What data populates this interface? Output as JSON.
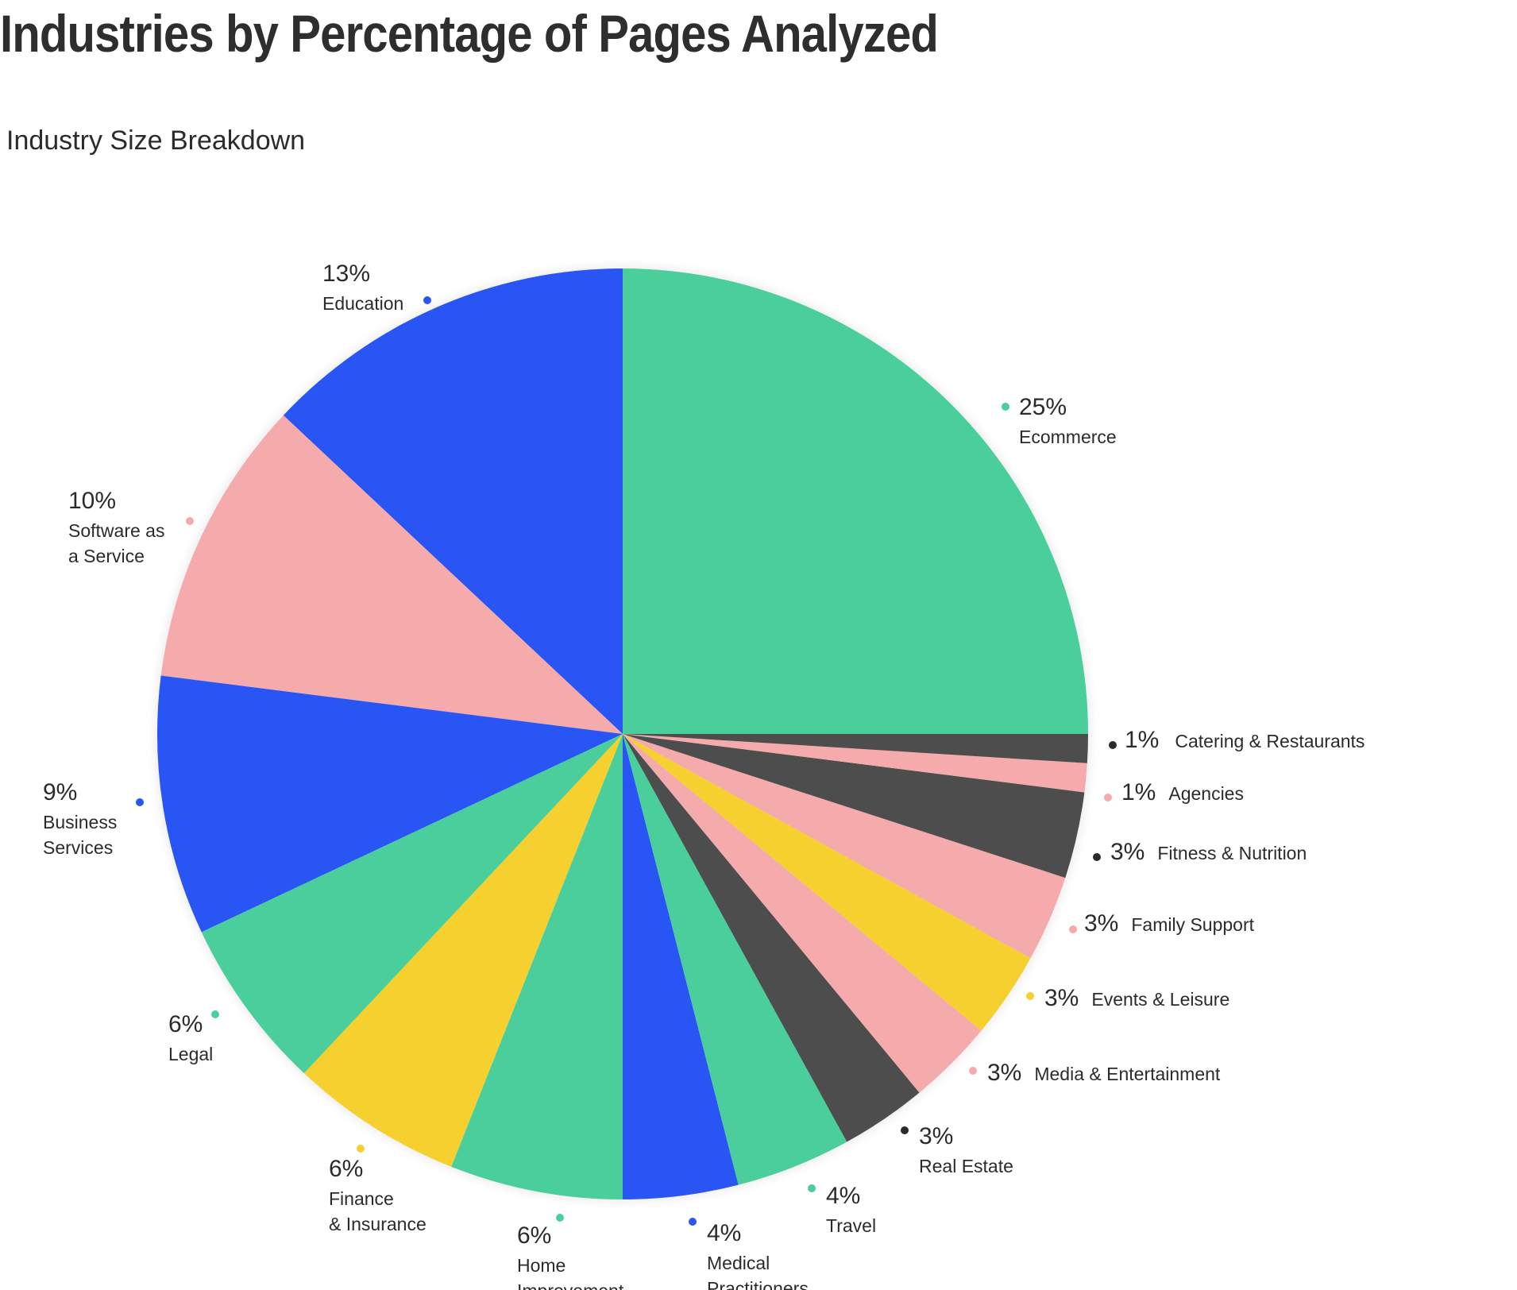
{
  "header": {
    "title": "Industries by Percentage of Pages Analyzed",
    "subtitle": "Industry Size Breakdown"
  },
  "colors": {
    "green": "#4acf9c",
    "blue": "#2a55f5",
    "pink": "#f5aaab",
    "yellow": "#f5d02e",
    "dark": "#4d4d4d",
    "text": "#2b2b2b"
  },
  "chart_data": {
    "type": "pie",
    "title": "Industries by Percentage of Pages Analyzed",
    "subtitle": "Industry Size Breakdown",
    "start": "3 o'clock",
    "direction": "counter-clockwise",
    "legend": "none (labels beside slices)",
    "slices": [
      {
        "label": "Ecommerce",
        "value": 25,
        "value_label": "25%",
        "color": "#4acf9c"
      },
      {
        "label": "Education",
        "value": 13,
        "value_label": "13%",
        "color": "#2a55f5"
      },
      {
        "label": "Software as a Service",
        "value": 10,
        "value_label": "10%",
        "color": "#f5aaab"
      },
      {
        "label": "Business Services",
        "value": 9,
        "value_label": "9%",
        "color": "#2a55f5"
      },
      {
        "label": "Legal",
        "value": 6,
        "value_label": "6%",
        "color": "#4acf9c"
      },
      {
        "label": "Finance & Insurance",
        "value": 6,
        "value_label": "6%",
        "color": "#f5d02e"
      },
      {
        "label": "Home Improvement",
        "value": 6,
        "value_label": "6%",
        "color": "#4acf9c"
      },
      {
        "label": "Medical Practitioners",
        "value": 4,
        "value_label": "4%",
        "color": "#2a55f5"
      },
      {
        "label": "Travel",
        "value": 4,
        "value_label": "4%",
        "color": "#4acf9c"
      },
      {
        "label": "Real Estate",
        "value": 3,
        "value_label": "3%",
        "color": "#4d4d4d"
      },
      {
        "label": "Media & Entertainment",
        "value": 3,
        "value_label": "3%",
        "color": "#f5aaab"
      },
      {
        "label": "Events & Leisure",
        "value": 3,
        "value_label": "3%",
        "color": "#f5d02e"
      },
      {
        "label": "Family Support",
        "value": 3,
        "value_label": "3%",
        "color": "#f5aaab"
      },
      {
        "label": "Fitness & Nutrition",
        "value": 3,
        "value_label": "3%",
        "color": "#4d4d4d"
      },
      {
        "label": "Agencies",
        "value": 1,
        "value_label": "1%",
        "color": "#f5aaab"
      },
      {
        "label": "Catering & Restaurants",
        "value": 1,
        "value_label": "1%",
        "color": "#4d4d4d"
      }
    ]
  }
}
